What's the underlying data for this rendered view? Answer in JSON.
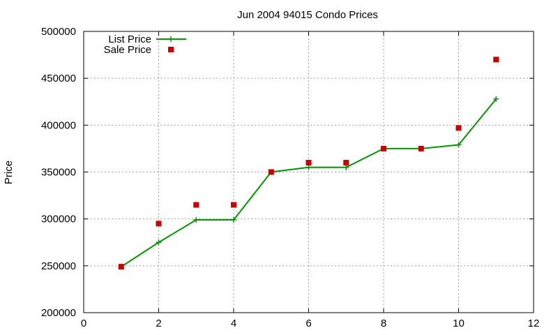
{
  "chart_data": {
    "type": "line",
    "title": "Jun 2004 94015 Condo Prices",
    "xlabel": "",
    "ylabel": "Price",
    "xlim": [
      0,
      12
    ],
    "ylim": [
      200000,
      500000
    ],
    "xticks": [
      0,
      2,
      4,
      6,
      8,
      10,
      12
    ],
    "yticks": [
      200000,
      250000,
      300000,
      350000,
      400000,
      450000,
      500000
    ],
    "grid": true,
    "legend_position": "top-left",
    "series": [
      {
        "name": "List Price",
        "style": "line-with-plus-markers",
        "color": "#009900",
        "x": [
          1,
          2,
          3,
          4,
          5,
          6,
          7,
          8,
          9,
          10,
          11
        ],
        "y": [
          249000,
          275000,
          299000,
          299000,
          350000,
          355000,
          355000,
          375000,
          375000,
          379000,
          428000
        ]
      },
      {
        "name": "Sale Price",
        "style": "square-points",
        "color": "#cc0000",
        "x": [
          1,
          2,
          3,
          4,
          5,
          6,
          7,
          8,
          9,
          10,
          11
        ],
        "y": [
          249000,
          295000,
          315000,
          315000,
          350000,
          360000,
          360000,
          375000,
          375000,
          397000,
          470000
        ]
      }
    ]
  }
}
